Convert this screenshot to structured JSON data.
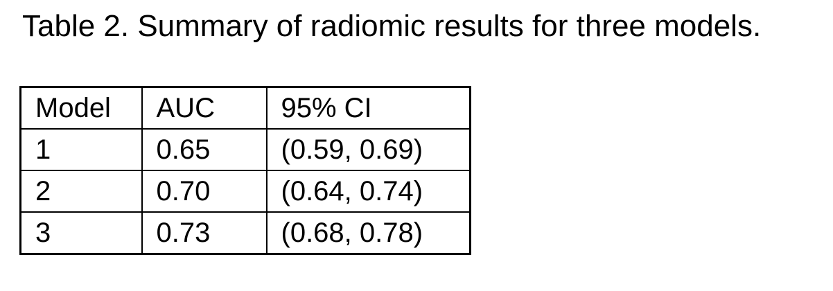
{
  "title": "Table 2. Summary of radiomic results for three models.",
  "table": {
    "columns": [
      "Model",
      "AUC",
      "95% CI"
    ],
    "rows": [
      [
        "1",
        "0.65",
        "(0.59, 0.69)"
      ],
      [
        "2",
        "0.70",
        "(0.64, 0.74)"
      ],
      [
        "3",
        "0.73",
        "(0.68, 0.78)"
      ]
    ]
  },
  "colors": {
    "background": "#ffffff",
    "text": "#000000",
    "border": "#000000"
  }
}
